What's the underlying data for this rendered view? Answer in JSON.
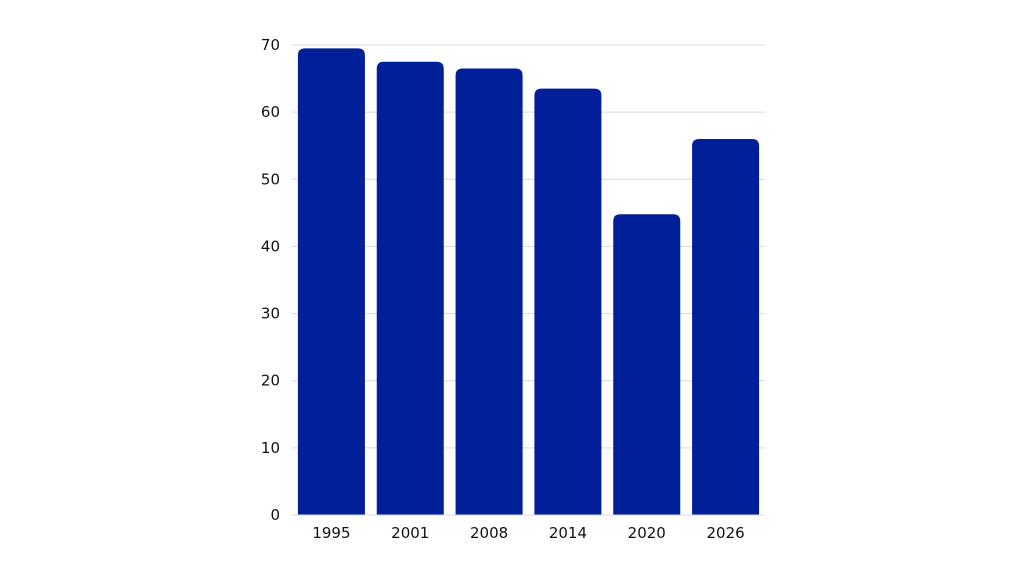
{
  "chart_data": {
    "type": "bar",
    "categories": [
      "1995",
      "2001",
      "2008",
      "2014",
      "2020",
      "2026"
    ],
    "values": [
      69.5,
      67.5,
      66.5,
      63.5,
      44.8,
      56
    ],
    "title": "",
    "xlabel": "",
    "ylabel": "",
    "ylim": [
      0,
      70
    ],
    "yticks": [
      0,
      10,
      20,
      30,
      40,
      50,
      60,
      70
    ],
    "grid": true,
    "legend": "none",
    "bar_color": "#001f99"
  }
}
